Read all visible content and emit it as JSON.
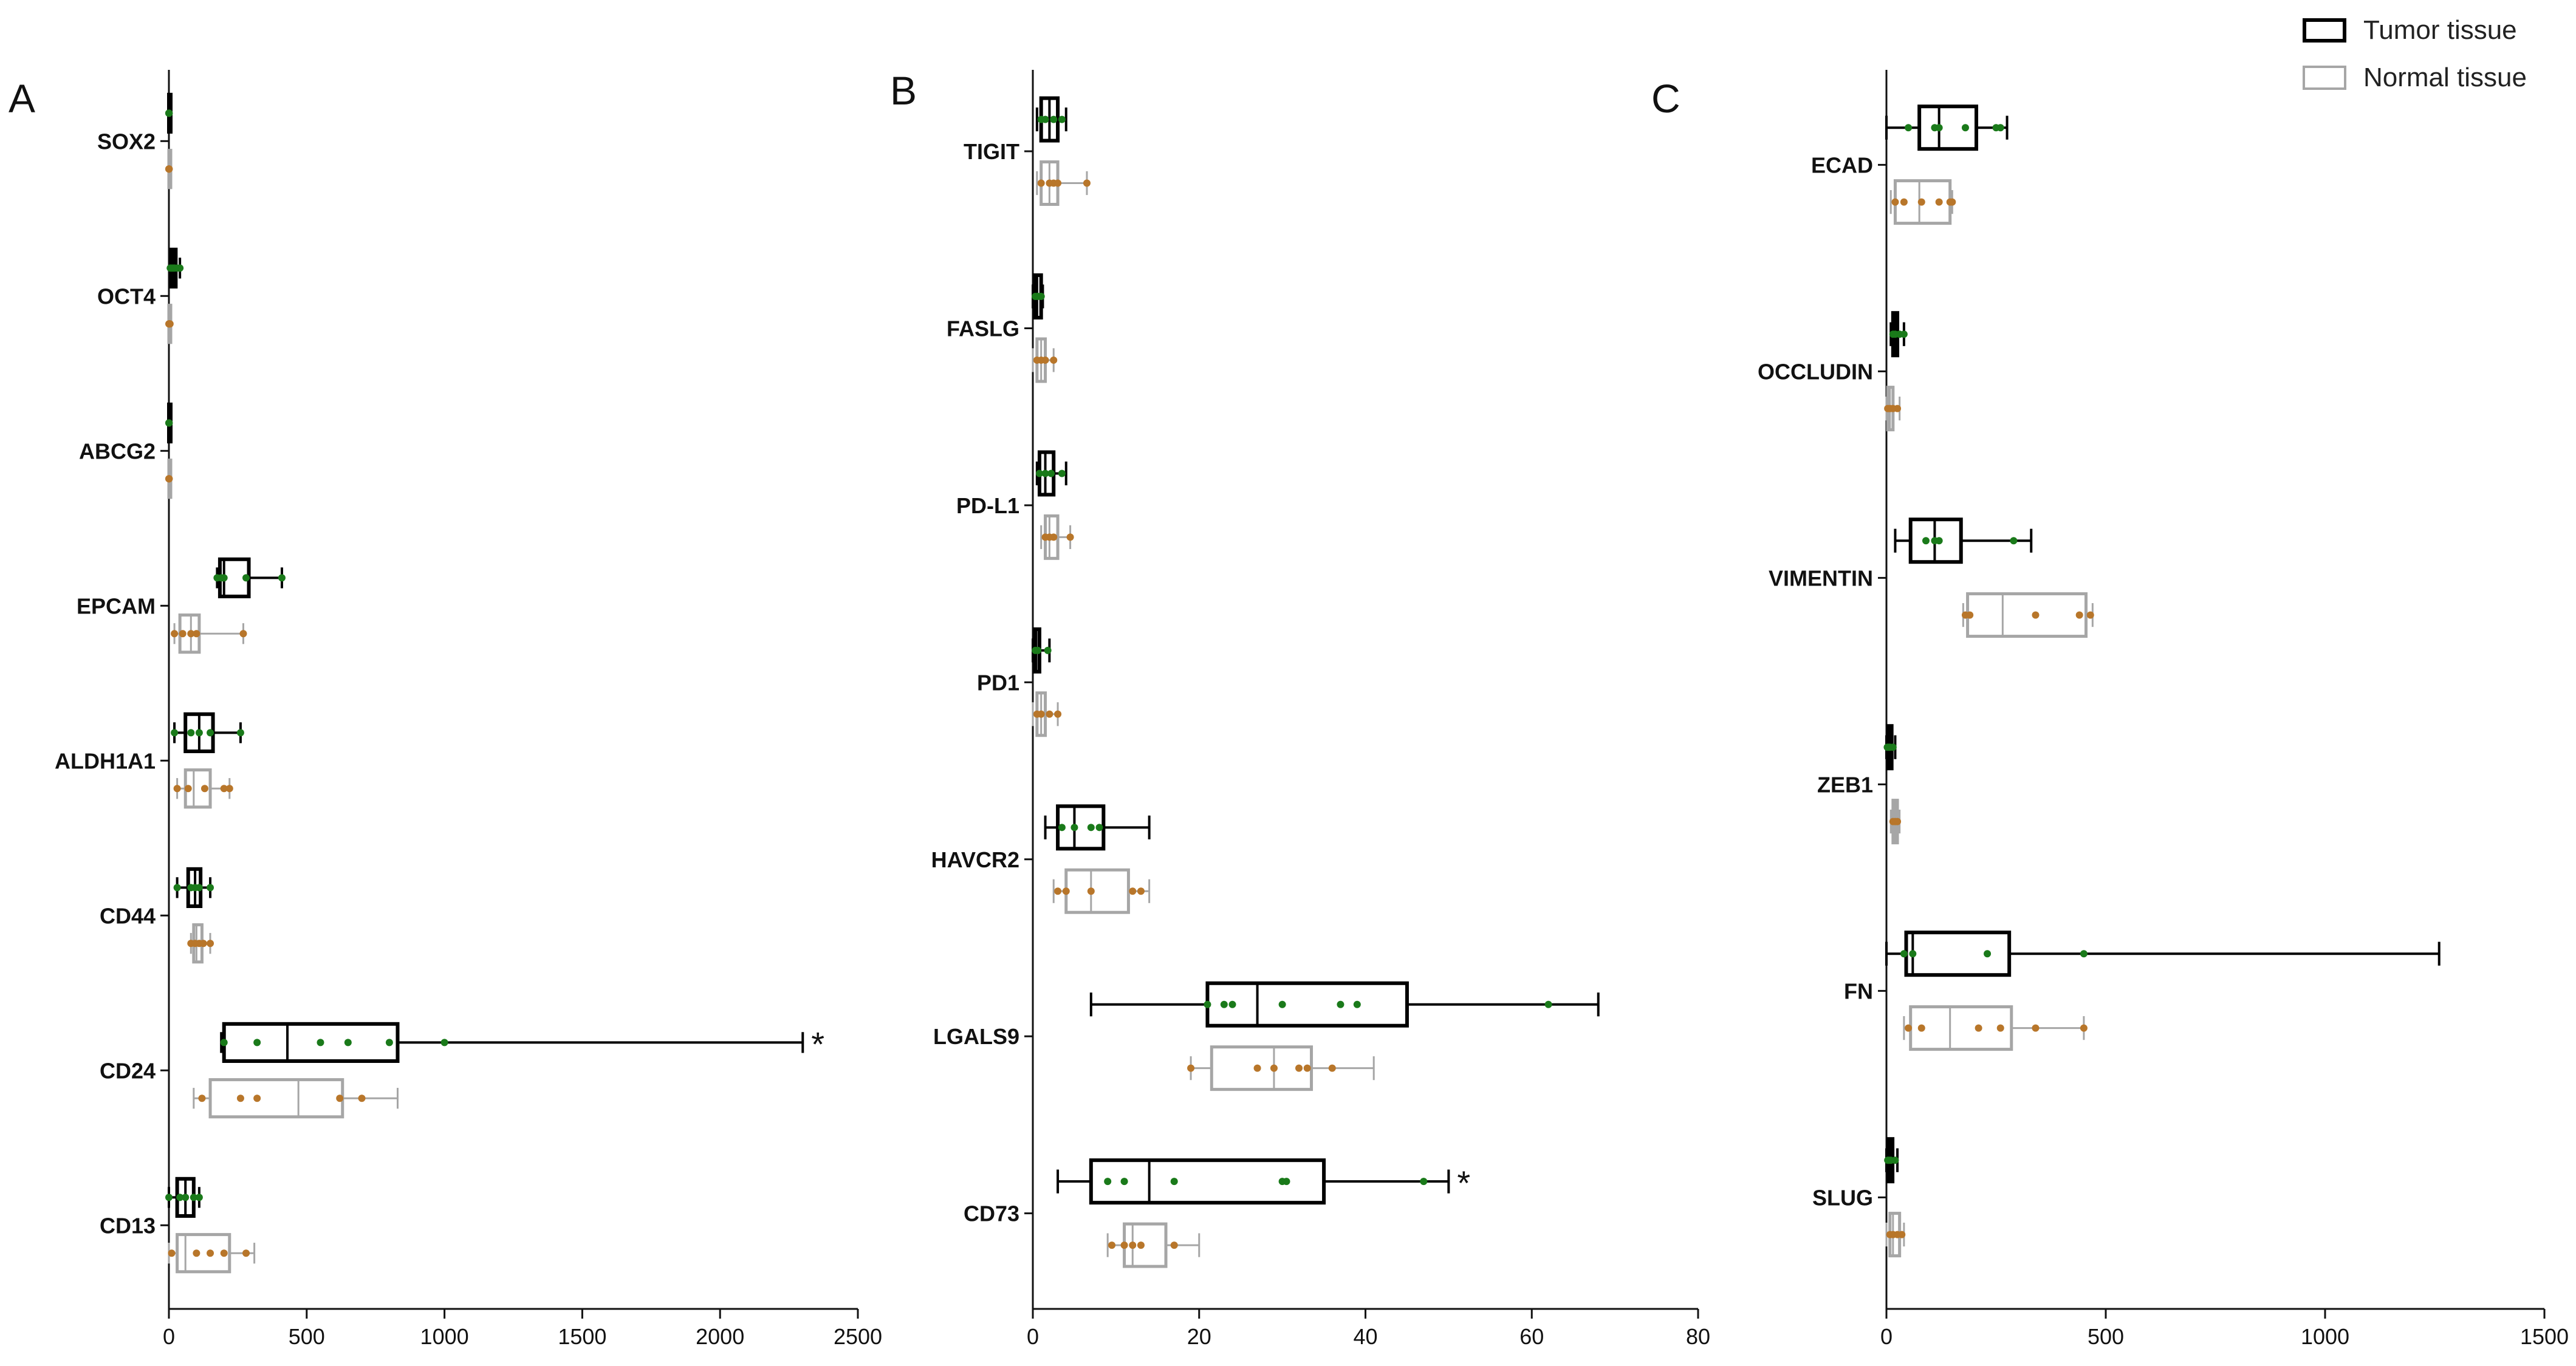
{
  "legend": {
    "tumor_label": "Tumor tissue",
    "normal_label": "Normal tissue"
  },
  "colors": {
    "tumor_box": "#000000",
    "normal_box": "#a6a6a6",
    "tumor_points": "#1a7a1a",
    "normal_points": "#b8762a"
  },
  "chart_data": [
    {
      "type": "boxplot",
      "panel_label": "A",
      "xlim": [
        0,
        2500
      ],
      "xticks": [
        0,
        500,
        1000,
        1500,
        2000,
        2500
      ],
      "tick_labels": [
        "0",
        "500",
        "1000",
        "1500",
        "2000",
        "2500"
      ],
      "categories": [
        "SOX2",
        "OCT4",
        "ABCG2",
        "EPCAM",
        "ALDH1A1",
        "CD44",
        "CD24",
        "CD13"
      ],
      "series": [
        {
          "name": "Tumor tissue",
          "stats": [
            {
              "min": 0,
              "q1": 0,
              "median": 0,
              "q3": 0,
              "max": 1,
              "points": [
                0,
                0,
                0,
                1
              ]
            },
            {
              "min": 5,
              "q1": 8,
              "median": 15,
              "q3": 25,
              "max": 40,
              "points": [
                5,
                10,
                15,
                20,
                30,
                40
              ]
            },
            {
              "min": 0,
              "q1": 0,
              "median": 0,
              "q3": 0,
              "max": 1,
              "points": [
                0,
                0,
                1
              ]
            },
            {
              "min": 175,
              "q1": 185,
              "median": 200,
              "q3": 290,
              "max": 410,
              "points": [
                175,
                190,
                200,
                280,
                410
              ]
            },
            {
              "min": 20,
              "q1": 60,
              "median": 110,
              "q3": 160,
              "max": 260,
              "points": [
                20,
                80,
                110,
                150,
                260
              ]
            },
            {
              "min": 30,
              "q1": 70,
              "median": 95,
              "q3": 115,
              "max": 150,
              "points": [
                30,
                80,
                95,
                110,
                150
              ]
            },
            {
              "min": 190,
              "q1": 200,
              "median": 430,
              "q3": 830,
              "max": 2300,
              "points": [
                200,
                320,
                550,
                650,
                800,
                1000
              ]
            },
            {
              "min": 0,
              "q1": 30,
              "median": 60,
              "q3": 90,
              "max": 110,
              "points": [
                0,
                40,
                60,
                90,
                110
              ]
            }
          ]
        },
        {
          "name": "Normal tissue",
          "stats": [
            {
              "min": 0,
              "q1": 0,
              "median": 0,
              "q3": 0,
              "max": 1,
              "points": [
                0,
                0,
                0,
                1
              ]
            },
            {
              "min": 0,
              "q1": 0,
              "median": 1,
              "q3": 2,
              "max": 4,
              "points": [
                0,
                1,
                2,
                4
              ]
            },
            {
              "min": 0,
              "q1": 0,
              "median": 0,
              "q3": 0,
              "max": 1,
              "points": [
                0,
                0,
                1
              ]
            },
            {
              "min": 20,
              "q1": 40,
              "median": 80,
              "q3": 110,
              "max": 270,
              "points": [
                20,
                50,
                80,
                100,
                270
              ]
            },
            {
              "min": 30,
              "q1": 60,
              "median": 90,
              "q3": 150,
              "max": 220,
              "points": [
                30,
                70,
                130,
                200,
                220
              ]
            },
            {
              "min": 80,
              "q1": 90,
              "median": 100,
              "q3": 120,
              "max": 150,
              "points": [
                80,
                95,
                110,
                125,
                150
              ]
            },
            {
              "min": 90,
              "q1": 150,
              "median": 470,
              "q3": 630,
              "max": 830,
              "points": [
                120,
                260,
                320,
                620,
                700
              ]
            },
            {
              "min": 0,
              "q1": 30,
              "median": 60,
              "q3": 220,
              "max": 310,
              "points": [
                10,
                100,
                150,
                200,
                280
              ]
            }
          ]
        }
      ],
      "annotations": [
        {
          "category": "CD24",
          "text": "*"
        }
      ],
      "xlabel": "",
      "ylabel": ""
    },
    {
      "type": "boxplot",
      "panel_label": "B",
      "xlim": [
        0,
        80
      ],
      "xticks": [
        0,
        20,
        40,
        60,
        80
      ],
      "tick_labels": [
        "0",
        "20",
        "40",
        "60",
        "80"
      ],
      "categories": [
        "TIGIT",
        "FASLG",
        "PD-L1",
        "PD1",
        "HAVCR2",
        "LGALS9",
        "CD73"
      ],
      "series": [
        {
          "name": "Tumor tissue",
          "stats": [
            {
              "min": 0.5,
              "q1": 1,
              "median": 2,
              "q3": 3,
              "max": 4,
              "points": [
                1,
                1.5,
                2.5,
                3.5
              ]
            },
            {
              "min": 0,
              "q1": 0.2,
              "median": 0.5,
              "q3": 1,
              "max": 1.2,
              "points": [
                0.3,
                0.6,
                1
              ]
            },
            {
              "min": 0.5,
              "q1": 0.8,
              "median": 1.5,
              "q3": 2.5,
              "max": 4,
              "points": [
                0.8,
                1.5,
                2.2,
                3.5
              ]
            },
            {
              "min": 0,
              "q1": 0.2,
              "median": 0.4,
              "q3": 0.8,
              "max": 2,
              "points": [
                0.3,
                0.6,
                1.8
              ]
            },
            {
              "min": 1.5,
              "q1": 3,
              "median": 5,
              "q3": 8.5,
              "max": 14,
              "points": [
                3.5,
                5,
                7,
                8
              ]
            },
            {
              "min": 7,
              "q1": 21,
              "median": 27,
              "q3": 45,
              "max": 68,
              "points": [
                21,
                23,
                24,
                30,
                37,
                39,
                62
              ]
            },
            {
              "min": 3,
              "q1": 7,
              "median": 14,
              "q3": 35,
              "max": 50,
              "points": [
                9,
                11,
                17,
                30,
                30.5,
                47
              ]
            }
          ]
        },
        {
          "name": "Normal tissue",
          "stats": [
            {
              "min": 0.5,
              "q1": 1,
              "median": 2,
              "q3": 3,
              "max": 6.5,
              "points": [
                1,
                2,
                2.5,
                3,
                6.5
              ]
            },
            {
              "min": 0,
              "q1": 0.5,
              "median": 1,
              "q3": 1.5,
              "max": 2.5,
              "points": [
                0.5,
                1,
                1.5,
                2.5
              ]
            },
            {
              "min": 1,
              "q1": 1.5,
              "median": 2,
              "q3": 3,
              "max": 4.5,
              "points": [
                1.5,
                2,
                2.5,
                4.5
              ]
            },
            {
              "min": 0,
              "q1": 0.5,
              "median": 1,
              "q3": 1.5,
              "max": 3,
              "points": [
                0.5,
                1,
                2,
                3
              ]
            },
            {
              "min": 2.5,
              "q1": 4,
              "median": 7,
              "q3": 11.5,
              "max": 14,
              "points": [
                3,
                4,
                7,
                12,
                13
              ]
            },
            {
              "min": 19,
              "q1": 21.5,
              "median": 29,
              "q3": 33.5,
              "max": 41,
              "points": [
                19,
                27,
                29,
                32,
                33,
                36
              ]
            },
            {
              "min": 9,
              "q1": 11,
              "median": 12,
              "q3": 16,
              "max": 20,
              "points": [
                9.5,
                11,
                12,
                13,
                17
              ]
            }
          ]
        }
      ],
      "annotations": [
        {
          "category": "CD73",
          "text": "*"
        }
      ],
      "xlabel": "",
      "ylabel": ""
    },
    {
      "type": "boxplot",
      "panel_label": "C",
      "xlim": [
        0,
        1500
      ],
      "xticks": [
        0,
        500,
        1000,
        1500
      ],
      "tick_labels": [
        "0",
        "500",
        "1000",
        "1500"
      ],
      "categories": [
        "ECAD",
        "OCCLUDIN",
        "VIMENTIN",
        "ZEB1",
        "FN",
        "SLUG"
      ],
      "series": [
        {
          "name": "Tumor tissue",
          "stats": [
            {
              "min": 0,
              "q1": 75,
              "median": 120,
              "q3": 205,
              "max": 275,
              "points": [
                50,
                110,
                120,
                180,
                250,
                260
              ]
            },
            {
              "min": 10,
              "q1": 15,
              "median": 20,
              "q3": 25,
              "max": 40,
              "points": [
                15,
                20,
                30,
                40
              ]
            },
            {
              "min": 20,
              "q1": 55,
              "median": 110,
              "q3": 170,
              "max": 330,
              "points": [
                90,
                110,
                120,
                290
              ]
            },
            {
              "min": 0,
              "q1": 3,
              "median": 6,
              "q3": 12,
              "max": 20,
              "points": [
                2,
                5,
                8,
                15
              ]
            },
            {
              "min": 0,
              "q1": 45,
              "median": 60,
              "q3": 280,
              "max": 1260,
              "points": [
                40,
                60,
                230,
                450
              ]
            },
            {
              "min": 0,
              "q1": 4,
              "median": 8,
              "q3": 14,
              "max": 25,
              "points": [
                3,
                6,
                10,
                20
              ]
            }
          ]
        },
        {
          "name": "Normal tissue",
          "stats": [
            {
              "min": 10,
              "q1": 20,
              "median": 75,
              "q3": 145,
              "max": 150,
              "points": [
                20,
                40,
                80,
                120,
                145,
                150
              ]
            },
            {
              "min": 0,
              "q1": 3,
              "median": 8,
              "q3": 15,
              "max": 30,
              "points": [
                3,
                8,
                15,
                25
              ]
            },
            {
              "min": 175,
              "q1": 185,
              "median": 265,
              "q3": 455,
              "max": 470,
              "points": [
                180,
                190,
                340,
                440,
                465
              ]
            },
            {
              "min": 10,
              "q1": 15,
              "median": 20,
              "q3": 25,
              "max": 30,
              "points": [
                15,
                20,
                25
              ]
            },
            {
              "min": 40,
              "q1": 55,
              "median": 145,
              "q3": 285,
              "max": 450,
              "points": [
                50,
                80,
                210,
                260,
                340,
                450
              ]
            },
            {
              "min": 0,
              "q1": 8,
              "median": 15,
              "q3": 30,
              "max": 40,
              "points": [
                8,
                15,
                25,
                35
              ]
            }
          ]
        }
      ],
      "annotations": [],
      "xlabel": "",
      "ylabel": ""
    }
  ]
}
